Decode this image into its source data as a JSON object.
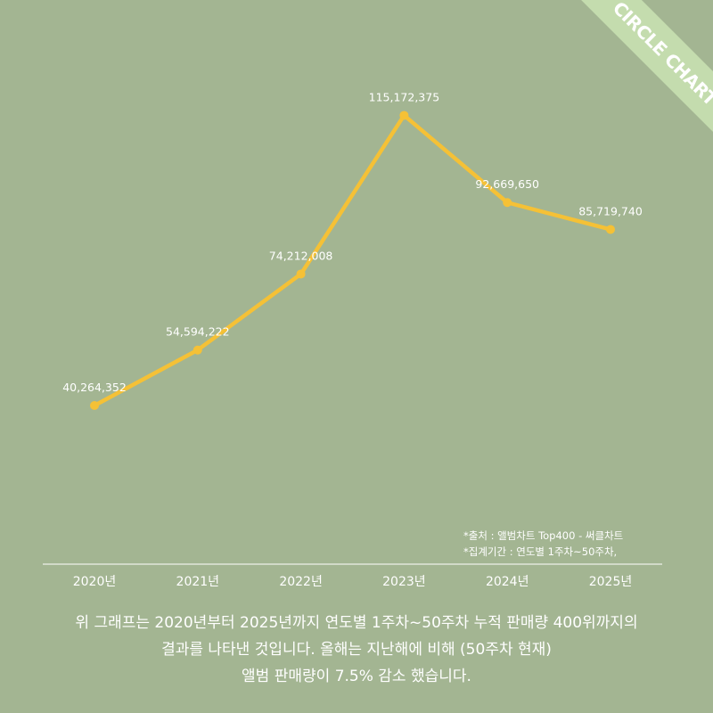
{
  "badge": {
    "label": "CIRCLE CHART"
  },
  "colors": {
    "background": "#a3b592",
    "line": "#f5c136",
    "badge": "#c4dcae",
    "text": "#ffffff"
  },
  "chart_data": {
    "type": "line",
    "categories": [
      "2020년",
      "2021년",
      "2022년",
      "2023년",
      "2024년",
      "2025년"
    ],
    "series": [
      {
        "values": [
          40264352,
          54594222,
          74212008,
          115172375,
          92669650,
          85719740
        ]
      }
    ],
    "data_labels": [
      "40,264,352",
      "54,594,222",
      "74,212,008",
      "115,172,375",
      "92,669,650",
      "85,719,740"
    ],
    "title": "",
    "xlabel": "",
    "ylabel": "",
    "ylim": [
      0,
      130000000
    ],
    "grid": false
  },
  "notes": {
    "source": "*출처 : 앨범차트 Top400 - 써클차트",
    "period": "*집계기간 : 연도별 1주차~50주차,"
  },
  "caption": {
    "line1": "위 그래프는 2020년부터 2025년까지 연도별 1주차~50주차 누적 판매량 400위까지의",
    "line2": "결과를 나타낸 것입니다. 올해는 지난해에 비해 (50주차 현재)",
    "line3": "앨범 판매량이 7.5% 감소 했습니다."
  }
}
